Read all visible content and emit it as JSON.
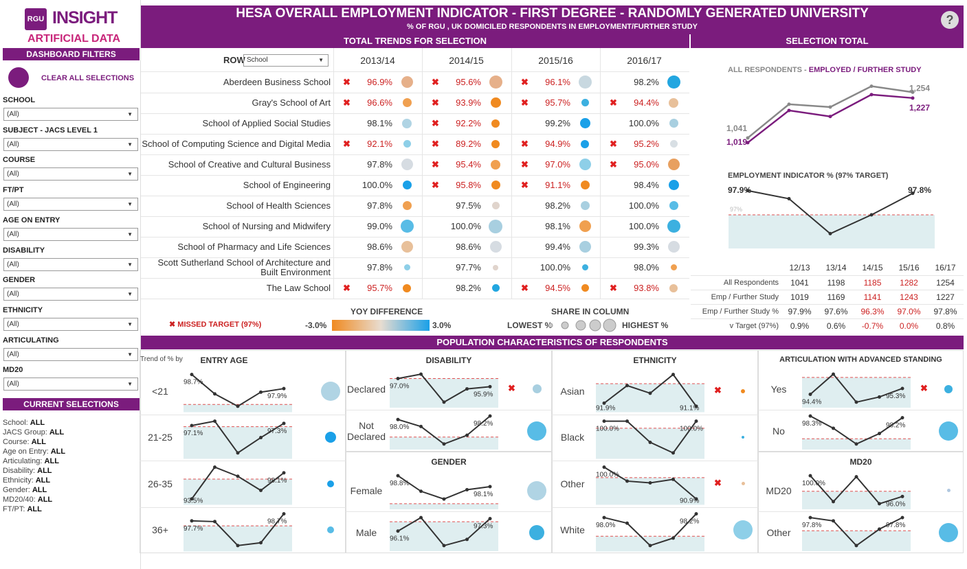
{
  "brand": {
    "logo": "RGU",
    "title": "INSIGHT",
    "subtitle": "ARTIFICIAL DATA"
  },
  "sidebar": {
    "filters_title": "DASHBOARD FILTERS",
    "clear_label": "CLEAR ALL SELECTIONS",
    "filters": [
      {
        "label": "SCHOOL",
        "value": "(All)"
      },
      {
        "label": "SUBJECT - JACS LEVEL 1",
        "value": "(All)"
      },
      {
        "label": "COURSE",
        "value": "(All)"
      },
      {
        "label": "FT/PT",
        "value": "(All)"
      },
      {
        "label": "AGE ON ENTRY",
        "value": "(All)"
      },
      {
        "label": "DISABILITY",
        "value": "(All)"
      },
      {
        "label": "GENDER",
        "value": "(All)"
      },
      {
        "label": "ETHNICITY",
        "value": "(All)"
      },
      {
        "label": "ARTICULATING",
        "value": "(All)"
      },
      {
        "label": "MD20",
        "value": "(All)"
      }
    ],
    "current_title": "CURRENT SELECTIONS",
    "current": [
      {
        "k": "School: ",
        "v": "ALL"
      },
      {
        "k": " JACS Group: ",
        "v": "ALL"
      },
      {
        "k": " Course: ",
        "v": "ALL"
      },
      {
        "k": "Age on Entry: ",
        "v": "ALL"
      },
      {
        "k": "Articulating: ",
        "v": "ALL"
      },
      {
        "k": "Disability: ",
        "v": "ALL"
      },
      {
        "k": "Ethnicity: ",
        "v": "ALL"
      },
      {
        "k": "Gender: ",
        "v": "ALL"
      },
      {
        "k": "MD20/40: ",
        "v": "ALL"
      },
      {
        "k": "FT/PT: ",
        "v": "ALL"
      }
    ]
  },
  "header": {
    "title": "HESA OVERALL EMPLOYMENT INDICATOR - FIRST DEGREE - RANDOMLY GENERATED UNIVERSITY",
    "subtitle": "% OF RGU , UK DOMICILED RESPONDENTS IN EMPLOYMENT/FURTHER STUDY",
    "help": "?"
  },
  "trends": {
    "title": "TOTAL TRENDS FOR SELECTION",
    "row_label": "ROW",
    "row_select": "School",
    "years": [
      "2013/14",
      "2014/15",
      "2015/16",
      "2016/17"
    ],
    "rows": [
      {
        "name": "Aberdeen Business School",
        "cells": [
          {
            "v": "96.9%",
            "miss": true,
            "c": "#e6b08a",
            "s": 17
          },
          {
            "v": "95.6%",
            "miss": true,
            "c": "#e6b08a",
            "s": 19
          },
          {
            "v": "96.1%",
            "miss": true,
            "c": "#c8d8e0",
            "s": 19
          },
          {
            "v": "98.2%",
            "miss": false,
            "c": "#22a6e0",
            "s": 19
          }
        ]
      },
      {
        "name": "Gray's School of Art",
        "cells": [
          {
            "v": "96.6%",
            "miss": true,
            "c": "#f0a050",
            "s": 13
          },
          {
            "v": "93.9%",
            "miss": true,
            "c": "#f08a20",
            "s": 15
          },
          {
            "v": "95.7%",
            "miss": true,
            "c": "#3cb0e0",
            "s": 11
          },
          {
            "v": "94.4%",
            "miss": true,
            "c": "#e8c09a",
            "s": 14
          }
        ]
      },
      {
        "name": "School of Applied Social Studies",
        "cells": [
          {
            "v": "98.1%",
            "miss": false,
            "c": "#b0d4e4",
            "s": 14
          },
          {
            "v": "92.2%",
            "miss": true,
            "c": "#f08a20",
            "s": 12
          },
          {
            "v": "99.2%",
            "miss": false,
            "c": "#1aa0e8",
            "s": 15
          },
          {
            "v": "100.0%",
            "miss": false,
            "c": "#a8cfe0",
            "s": 13
          }
        ]
      },
      {
        "name": "School of Computing Science and Digital Media",
        "cells": [
          {
            "v": "92.1%",
            "miss": true,
            "c": "#8ecfe8",
            "s": 11
          },
          {
            "v": "89.2%",
            "miss": true,
            "c": "#f08a20",
            "s": 12
          },
          {
            "v": "94.9%",
            "miss": true,
            "c": "#1aa0e8",
            "s": 12
          },
          {
            "v": "95.2%",
            "miss": true,
            "c": "#d8dfe4",
            "s": 11
          }
        ]
      },
      {
        "name": "School of Creative and Cultural Business",
        "cells": [
          {
            "v": "97.8%",
            "miss": false,
            "c": "#d6dce2",
            "s": 17
          },
          {
            "v": "95.4%",
            "miss": true,
            "c": "#f0a050",
            "s": 14
          },
          {
            "v": "97.0%",
            "miss": true,
            "c": "#8ecfe8",
            "s": 17
          },
          {
            "v": "95.0%",
            "miss": true,
            "c": "#e8a060",
            "s": 17
          }
        ]
      },
      {
        "name": "School of Engineering",
        "cells": [
          {
            "v": "100.0%",
            "miss": false,
            "c": "#1aa0e8",
            "s": 13
          },
          {
            "v": "95.8%",
            "miss": true,
            "c": "#f08a20",
            "s": 13
          },
          {
            "v": "91.1%",
            "miss": true,
            "c": "#f08a20",
            "s": 13
          },
          {
            "v": "98.4%",
            "miss": false,
            "c": "#1aa0e8",
            "s": 15
          }
        ]
      },
      {
        "name": "School of Health Sciences",
        "cells": [
          {
            "v": "97.8%",
            "miss": false,
            "c": "#f0a050",
            "s": 13
          },
          {
            "v": "97.5%",
            "miss": false,
            "c": "#e0d4cc",
            "s": 11
          },
          {
            "v": "98.2%",
            "miss": false,
            "c": "#a8cfe0",
            "s": 13
          },
          {
            "v": "100.0%",
            "miss": false,
            "c": "#58bce6",
            "s": 13
          }
        ]
      },
      {
        "name": "School of Nursing and Midwifery",
        "cells": [
          {
            "v": "99.0%",
            "miss": false,
            "c": "#58bce6",
            "s": 19
          },
          {
            "v": "100.0%",
            "miss": false,
            "c": "#a8cfe0",
            "s": 20
          },
          {
            "v": "98.1%",
            "miss": false,
            "c": "#f0a050",
            "s": 17
          },
          {
            "v": "100.0%",
            "miss": false,
            "c": "#3cb0e0",
            "s": 19
          }
        ]
      },
      {
        "name": "School of Pharmacy and Life Sciences",
        "cells": [
          {
            "v": "98.6%",
            "miss": false,
            "c": "#e8c09a",
            "s": 17
          },
          {
            "v": "98.6%",
            "miss": false,
            "c": "#d6dce2",
            "s": 17
          },
          {
            "v": "99.4%",
            "miss": false,
            "c": "#a8cfe0",
            "s": 17
          },
          {
            "v": "99.3%",
            "miss": false,
            "c": "#d6dce2",
            "s": 17
          }
        ]
      },
      {
        "name": "Scott Sutherland School of Architecture and Built Environment",
        "cells": [
          {
            "v": "97.8%",
            "miss": false,
            "c": "#8ecfe8",
            "s": 9
          },
          {
            "v": "97.7%",
            "miss": false,
            "c": "#e0d4cc",
            "s": 8
          },
          {
            "v": "100.0%",
            "miss": false,
            "c": "#3cb0e0",
            "s": 9
          },
          {
            "v": "98.0%",
            "miss": false,
            "c": "#f0a050",
            "s": 9
          }
        ]
      },
      {
        "name": "The Law School",
        "cells": [
          {
            "v": "95.7%",
            "miss": true,
            "c": "#f08a20",
            "s": 12
          },
          {
            "v": "98.2%",
            "miss": false,
            "c": "#22a6e0",
            "s": 11
          },
          {
            "v": "94.5%",
            "miss": true,
            "c": "#f08a20",
            "s": 11
          },
          {
            "v": "93.8%",
            "miss": true,
            "c": "#e8c09a",
            "s": 12
          }
        ]
      }
    ],
    "legend": {
      "missed": "MISSED TARGET (97%)",
      "yoy_title": "YOY DIFFERENCE",
      "yoy_low": "-3.0%",
      "yoy_high": "3.0%",
      "share_title": "SHARE IN COLUMN",
      "lowest": "LOWEST %",
      "highest": "HIGHEST %"
    }
  },
  "selection_total": {
    "title": "SELECTION TOTAL",
    "chart1_title_a": "ALL RESPONDENTS - ",
    "chart1_title_b": "EMPLOYED / FURTHER STUDY",
    "chart2_title": "EMPLOYMENT INDICATOR % (97% TARGET)",
    "chart_data": [
      {
        "type": "line",
        "title": "ALL RESPONDENTS - EMPLOYED / FURTHER STUDY",
        "categories": [
          "12/13",
          "13/14",
          "14/15",
          "15/16",
          "16/17"
        ],
        "series": [
          {
            "name": "All Respondents",
            "values": [
              1041,
              1198,
              1185,
              1282,
              1254
            ],
            "color": "#888888"
          },
          {
            "name": "Emp / Further Study",
            "values": [
              1019,
              1169,
              1141,
              1243,
              1227
            ],
            "color": "#7b1c7d"
          }
        ],
        "labels": {
          "all_first": "1,041",
          "all_last": "1,254",
          "emp_first": "1,019",
          "emp_last": "1,227"
        },
        "ylim": [
          980,
          1300
        ]
      },
      {
        "type": "line",
        "title": "EMPLOYMENT INDICATOR % (97% TARGET)",
        "categories": [
          "12/13",
          "13/14",
          "14/15",
          "15/16",
          "16/17"
        ],
        "series": [
          {
            "name": "Emp / Further Study %",
            "values": [
              97.9,
              97.6,
              96.3,
              97.0,
              97.8
            ]
          }
        ],
        "target": 97,
        "target_label": "97%",
        "labels": {
          "first": "97.9%",
          "last": "97.8%"
        },
        "ylim": [
          95.8,
          98.2
        ]
      }
    ],
    "table": {
      "cols": [
        "12/13",
        "13/14",
        "14/15",
        "15/16",
        "16/17"
      ],
      "rows": [
        {
          "label": "All Respondents",
          "vals": [
            "1041",
            "1198",
            "1185",
            "1282",
            "1254"
          ],
          "red": [
            false,
            false,
            true,
            true,
            false
          ]
        },
        {
          "label": "Emp / Further Study",
          "vals": [
            "1019",
            "1169",
            "1141",
            "1243",
            "1227"
          ],
          "red": [
            false,
            false,
            true,
            true,
            false
          ]
        },
        {
          "label": "Emp / Further Study %",
          "vals": [
            "97.9%",
            "97.6%",
            "96.3%",
            "97.0%",
            "97.8%"
          ],
          "red": [
            false,
            false,
            true,
            true,
            false
          ]
        },
        {
          "label": "v Target (97%)",
          "vals": [
            "0.9%",
            "0.6%",
            "-0.7%",
            "0.0%",
            "0.8%"
          ],
          "red": [
            false,
            false,
            true,
            true,
            false
          ]
        }
      ]
    }
  },
  "population": {
    "title": "POPULATION CHARACTERISTICS OF RESPONDENTS",
    "trend_label": "Trend of % by",
    "panels": [
      {
        "title": "ENTRY AGE",
        "items": [
          {
            "label": "<21",
            "first": "98.7%",
            "last": "97.9%",
            "vals": [
              98.7,
              97.6,
              96.9,
              97.7,
              97.9
            ],
            "miss": false,
            "c": "#b0d4e4",
            "s": 28
          },
          {
            "label": "21-25",
            "first": "97.1%",
            "last": "97.3%",
            "vals": [
              97.1,
              97.5,
              94.6,
              96.0,
              97.3
            ],
            "miss": false,
            "c": "#1aa0e8",
            "s": 16
          },
          {
            "label": "26-35",
            "first": "93.5%",
            "last": "98.1%",
            "vals": [
              93.5,
              99.1,
              97.5,
              95.0,
              98.1
            ],
            "miss": false,
            "c": "#1aa0e8",
            "s": 10
          },
          {
            "label": "36+",
            "first": "97.7%",
            "last": "98.7%",
            "vals": [
              97.7,
              97.6,
              94.2,
              94.6,
              98.7
            ],
            "miss": false,
            "c": "#58bce6",
            "s": 10
          }
        ]
      },
      {
        "title": "DISABILITY",
        "items": [
          {
            "label": "Declared",
            "first": "97.0%",
            "last": "95.9%",
            "vals": [
              97.0,
              97.6,
              93.8,
              95.6,
              95.9
            ],
            "miss": true,
            "c": "#a8cfe0",
            "s": 13
          },
          {
            "label": "Not Declared",
            "first": "98.0%",
            "last": "98.2%",
            "vals": [
              98.0,
              97.6,
              96.6,
              97.1,
              98.2
            ],
            "miss": false,
            "c": "#58bce6",
            "s": 28
          }
        ]
      },
      {
        "title": "GENDER",
        "items": [
          {
            "label": "Female",
            "first": "98.8%",
            "last": "98.1%",
            "vals": [
              98.8,
              97.8,
              97.3,
              97.9,
              98.1
            ],
            "miss": false,
            "c": "#b0d4e4",
            "s": 28
          },
          {
            "label": "Male",
            "first": "96.1%",
            "last": "97.3%",
            "vals": [
              96.1,
              97.4,
              94.7,
              95.3,
              97.3
            ],
            "miss": false,
            "c": "#3cb0e0",
            "s": 22
          }
        ]
      },
      {
        "title": "ETHNICITY",
        "items": [
          {
            "label": "Asian",
            "first": "91.9%",
            "last": "91.1%",
            "vals": [
              91.9,
              96.5,
              94.5,
              99.4,
              91.1
            ],
            "miss": true,
            "c": "#f08a20",
            "s": 6
          },
          {
            "label": "Black",
            "first": "100.0%",
            "last": "100.0%",
            "vals": [
              100.0,
              100.0,
              91.0,
              86.5,
              100.0
            ],
            "miss": false,
            "c": "#3cb0e0",
            "s": 4
          },
          {
            "label": "Other",
            "first": "100.0%",
            "last": "90.9%",
            "vals": [
              100.0,
              96.0,
              95.5,
              96.5,
              90.9
            ],
            "miss": true,
            "c": "#e8c09a",
            "s": 5
          },
          {
            "label": "White",
            "first": "98.0%",
            "last": "98.2%",
            "vals": [
              98.0,
              97.7,
              96.5,
              96.9,
              98.2
            ],
            "miss": false,
            "c": "#8ecfe8",
            "s": 28
          }
        ]
      },
      {
        "title": "ARTICULATION WITH ADVANCED STANDING",
        "items": [
          {
            "label": "Yes",
            "first": "94.4%",
            "last": "95.3%",
            "vals": [
              94.4,
              97.5,
              93.2,
              94.0,
              95.3
            ],
            "miss": true,
            "c": "#3cb0e0",
            "s": 12
          },
          {
            "label": "No",
            "first": "98.3%",
            "last": "98.2%",
            "vals": [
              98.3,
              97.6,
              96.7,
              97.3,
              98.2
            ],
            "miss": false,
            "c": "#58bce6",
            "s": 28
          }
        ]
      },
      {
        "title": "MD20",
        "items": [
          {
            "label": "MD20",
            "first": "100.0%",
            "last": "96.0%",
            "vals": [
              100.0,
              95.0,
              99.8,
              94.6,
              96.0
            ],
            "miss": false,
            "c": "#b0c8e0",
            "s": 5
          },
          {
            "label": "Other",
            "first": "97.8%",
            "last": "97.8%",
            "vals": [
              97.8,
              97.6,
              96.1,
              97.1,
              97.8
            ],
            "miss": false,
            "c": "#58bce6",
            "s": 28
          }
        ]
      }
    ]
  }
}
